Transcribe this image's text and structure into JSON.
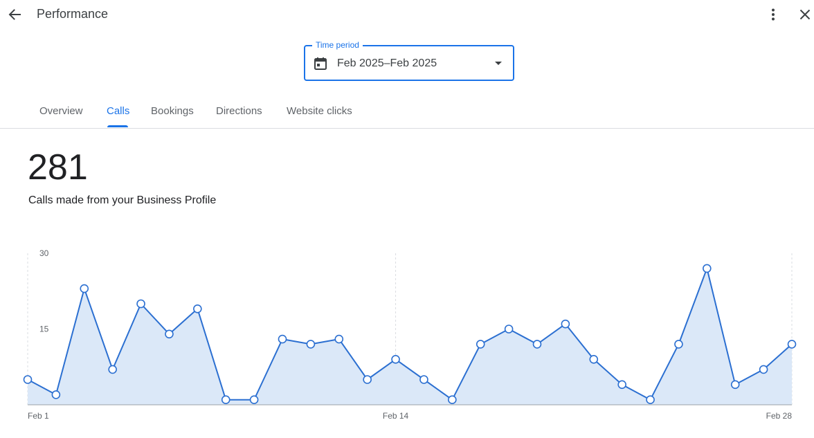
{
  "header": {
    "title": "Performance"
  },
  "icons": {
    "back": "arrow-back-icon",
    "more": "more-vert-icon",
    "close": "close-icon",
    "calendar": "calendar-icon",
    "dropdown": "caret-down-icon"
  },
  "time_period": {
    "label": "Time period",
    "value": "Feb 2025–Feb 2025"
  },
  "tabs": [
    {
      "label": "Overview",
      "active": false
    },
    {
      "label": "Calls",
      "active": true
    },
    {
      "label": "Bookings",
      "active": false
    },
    {
      "label": "Directions",
      "active": false
    },
    {
      "label": "Website clicks",
      "active": false
    }
  ],
  "metric": {
    "value": "281",
    "caption": "Calls made from your Business Profile"
  },
  "colors": {
    "accent": "#1a73e8",
    "line": "#2b6fd1",
    "fill": "#dbe8f8"
  },
  "chart_data": {
    "type": "area",
    "x": [
      1,
      2,
      3,
      4,
      5,
      6,
      7,
      8,
      9,
      10,
      11,
      12,
      13,
      14,
      15,
      16,
      17,
      18,
      19,
      20,
      21,
      22,
      23,
      24,
      25,
      26,
      27,
      28
    ],
    "values": [
      5,
      2,
      23,
      7,
      20,
      14,
      19,
      1,
      1,
      13,
      12,
      13,
      5,
      9,
      5,
      1,
      12,
      15,
      12,
      16,
      9,
      4,
      1,
      12,
      27,
      4,
      7,
      12
    ],
    "y_ticks": [
      15,
      30
    ],
    "y_tick_labels": [
      "15",
      "30"
    ],
    "x_tick_labels": [
      {
        "x": 1,
        "label": "Feb 1"
      },
      {
        "x": 14,
        "label": "Feb 14"
      },
      {
        "x": 28,
        "label": "Feb 28"
      }
    ],
    "ylim": [
      0,
      30
    ],
    "xlim": [
      1,
      28
    ],
    "grid": "vertical-dashed-at-labels"
  }
}
